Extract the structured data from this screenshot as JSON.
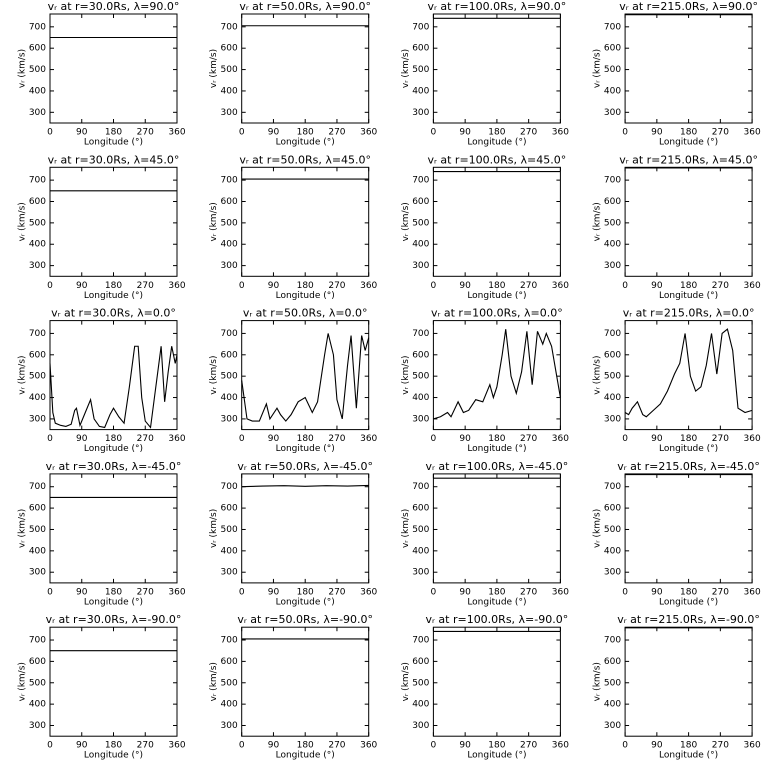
{
  "chart_data": [
    {
      "type": "line",
      "title": "vᵣ at r=30.0Rs, λ=90.0°",
      "xlabel": "Longitude (°)",
      "ylabel": "vᵣ (km/s)",
      "x": [
        0,
        360
      ],
      "series": [
        {
          "color": "#000000",
          "values": [
            650,
            650
          ]
        }
      ],
      "xlim": [
        0,
        360
      ],
      "ylim": [
        250,
        760
      ],
      "xticks": [
        0,
        90,
        180,
        270,
        360
      ],
      "yticks": [
        300,
        400,
        500,
        600,
        700
      ]
    },
    {
      "type": "line",
      "title": "vᵣ at r=50.0Rs, λ=90.0°",
      "xlabel": "Longitude (°)",
      "ylabel": "vᵣ (km/s)",
      "x": [
        0,
        360
      ],
      "series": [
        {
          "color": "#000000",
          "values": [
            705,
            705
          ]
        }
      ],
      "xlim": [
        0,
        360
      ],
      "ylim": [
        250,
        760
      ],
      "xticks": [
        0,
        90,
        180,
        270,
        360
      ],
      "yticks": [
        300,
        400,
        500,
        600,
        700
      ]
    },
    {
      "type": "line",
      "title": "vᵣ at r=100.0Rs, λ=90.0°",
      "xlabel": "Longitude (°)",
      "ylabel": "vᵣ (km/s)",
      "x": [
        0,
        360
      ],
      "series": [
        {
          "color": "#000000",
          "values": [
            740,
            740
          ]
        }
      ],
      "xlim": [
        0,
        360
      ],
      "ylim": [
        250,
        760
      ],
      "xticks": [
        0,
        90,
        180,
        270,
        360
      ],
      "yticks": [
        300,
        400,
        500,
        600,
        700
      ]
    },
    {
      "type": "line",
      "title": "vᵣ at r=215.0Rs, λ=90.0°",
      "xlabel": "Longitude (°)",
      "ylabel": "vᵣ (km/s)",
      "x": [
        0,
        360
      ],
      "series": [
        {
          "color": "#000000",
          "values": [
            757,
            757
          ]
        }
      ],
      "xlim": [
        0,
        360
      ],
      "ylim": [
        250,
        760
      ],
      "xticks": [
        0,
        90,
        180,
        270,
        360
      ],
      "yticks": [
        300,
        400,
        500,
        600,
        700
      ]
    },
    {
      "type": "line",
      "title": "vᵣ at r=30.0Rs, λ=45.0°",
      "xlabel": "Longitude (°)",
      "ylabel": "vᵣ (km/s)",
      "x": [
        0,
        360
      ],
      "series": [
        {
          "color": "#000000",
          "values": [
            650,
            650
          ]
        }
      ],
      "xlim": [
        0,
        360
      ],
      "ylim": [
        250,
        760
      ],
      "xticks": [
        0,
        90,
        180,
        270,
        360
      ],
      "yticks": [
        300,
        400,
        500,
        600,
        700
      ]
    },
    {
      "type": "line",
      "title": "vᵣ at r=50.0Rs, λ=45.0°",
      "xlabel": "Longitude (°)",
      "ylabel": "vᵣ (km/s)",
      "x": [
        0,
        360
      ],
      "series": [
        {
          "color": "#000000",
          "values": [
            705,
            705
          ]
        }
      ],
      "xlim": [
        0,
        360
      ],
      "ylim": [
        250,
        760
      ],
      "xticks": [
        0,
        90,
        180,
        270,
        360
      ],
      "yticks": [
        300,
        400,
        500,
        600,
        700
      ]
    },
    {
      "type": "line",
      "title": "vᵣ at r=100.0Rs, λ=45.0°",
      "xlabel": "Longitude (°)",
      "ylabel": "vᵣ (km/s)",
      "x": [
        0,
        360
      ],
      "series": [
        {
          "color": "#000000",
          "values": [
            740,
            740
          ]
        }
      ],
      "xlim": [
        0,
        360
      ],
      "ylim": [
        250,
        760
      ],
      "xticks": [
        0,
        90,
        180,
        270,
        360
      ],
      "yticks": [
        300,
        400,
        500,
        600,
        700
      ]
    },
    {
      "type": "line",
      "title": "vᵣ at r=215.0Rs, λ=45.0°",
      "xlabel": "Longitude (°)",
      "ylabel": "vᵣ (km/s)",
      "x": [
        0,
        360
      ],
      "series": [
        {
          "color": "#000000",
          "values": [
            757,
            757
          ]
        }
      ],
      "xlim": [
        0,
        360
      ],
      "ylim": [
        250,
        760
      ],
      "xticks": [
        0,
        90,
        180,
        270,
        360
      ],
      "yticks": [
        300,
        400,
        500,
        600,
        700
      ]
    },
    {
      "type": "line",
      "title": "vᵣ at r=30.0Rs, λ=0.0°",
      "xlabel": "Longitude (°)",
      "ylabel": "vᵣ (km/s)",
      "x": [
        0,
        8,
        15,
        30,
        45,
        60,
        70,
        75,
        85,
        100,
        115,
        125,
        140,
        155,
        170,
        180,
        195,
        210,
        225,
        240,
        250,
        260,
        270,
        285,
        300,
        315,
        325,
        335,
        345,
        355,
        360
      ],
      "series": [
        {
          "color": "#000000",
          "values": [
            560,
            330,
            280,
            270,
            265,
            275,
            340,
            350,
            270,
            330,
            390,
            300,
            265,
            260,
            320,
            350,
            310,
            280,
            450,
            640,
            640,
            400,
            290,
            260,
            450,
            640,
            380,
            520,
            640,
            560,
            600
          ]
        }
      ],
      "xlim": [
        0,
        360
      ],
      "ylim": [
        250,
        760
      ],
      "xticks": [
        0,
        90,
        180,
        270,
        360
      ],
      "yticks": [
        300,
        400,
        500,
        600,
        700
      ]
    },
    {
      "type": "line",
      "title": "vᵣ at r=50.0Rs, λ=0.0°",
      "xlabel": "Longitude (°)",
      "ylabel": "vᵣ (km/s)",
      "x": [
        0,
        15,
        30,
        50,
        70,
        80,
        100,
        110,
        125,
        140,
        160,
        180,
        200,
        215,
        235,
        245,
        260,
        270,
        285,
        300,
        310,
        325,
        340,
        350,
        360
      ],
      "series": [
        {
          "color": "#000000",
          "values": [
            480,
            300,
            290,
            290,
            370,
            300,
            350,
            320,
            290,
            320,
            380,
            400,
            330,
            380,
            600,
            700,
            600,
            390,
            300,
            550,
            690,
            350,
            690,
            620,
            680
          ]
        }
      ],
      "xlim": [
        0,
        360
      ],
      "ylim": [
        250,
        760
      ],
      "xticks": [
        0,
        90,
        180,
        270,
        360
      ],
      "yticks": [
        300,
        400,
        500,
        600,
        700
      ]
    },
    {
      "type": "line",
      "title": "vᵣ at r=100.0Rs, λ=0.0°",
      "xlabel": "Longitude (°)",
      "ylabel": "vᵣ (km/s)",
      "x": [
        0,
        20,
        40,
        50,
        70,
        85,
        100,
        120,
        140,
        160,
        170,
        180,
        195,
        205,
        220,
        235,
        250,
        265,
        280,
        295,
        310,
        320,
        335,
        360
      ],
      "series": [
        {
          "color": "#000000",
          "values": [
            300,
            310,
            330,
            310,
            380,
            330,
            340,
            390,
            380,
            460,
            400,
            450,
            600,
            720,
            500,
            420,
            520,
            710,
            460,
            710,
            650,
            700,
            640,
            400
          ]
        }
      ],
      "xlim": [
        0,
        360
      ],
      "ylim": [
        250,
        760
      ],
      "xticks": [
        0,
        90,
        180,
        270,
        360
      ],
      "yticks": [
        300,
        400,
        500,
        600,
        700
      ]
    },
    {
      "type": "line",
      "title": "vᵣ at r=215.0Rs, λ=0.0°",
      "xlabel": "Longitude (°)",
      "ylabel": "vᵣ (km/s)",
      "x": [
        0,
        10,
        20,
        35,
        50,
        60,
        80,
        100,
        120,
        140,
        155,
        170,
        185,
        200,
        215,
        230,
        245,
        260,
        275,
        290,
        305,
        320,
        340,
        360
      ],
      "series": [
        {
          "color": "#000000",
          "values": [
            330,
            320,
            350,
            380,
            320,
            310,
            340,
            370,
            430,
            510,
            560,
            700,
            500,
            430,
            450,
            550,
            700,
            510,
            700,
            720,
            620,
            350,
            330,
            340
          ]
        }
      ],
      "xlim": [
        0,
        360
      ],
      "ylim": [
        250,
        760
      ],
      "xticks": [
        0,
        90,
        180,
        270,
        360
      ],
      "yticks": [
        300,
        400,
        500,
        600,
        700
      ]
    },
    {
      "type": "line",
      "title": "vᵣ at r=30.0Rs, λ=-45.0°",
      "xlabel": "Longitude (°)",
      "ylabel": "vᵣ (km/s)",
      "x": [
        0,
        360
      ],
      "series": [
        {
          "color": "#000000",
          "values": [
            650,
            650
          ]
        }
      ],
      "xlim": [
        0,
        360
      ],
      "ylim": [
        250,
        760
      ],
      "xticks": [
        0,
        90,
        180,
        270,
        360
      ],
      "yticks": [
        300,
        400,
        500,
        600,
        700
      ]
    },
    {
      "type": "line",
      "title": "vᵣ at r=50.0Rs, λ=-45.0°",
      "xlabel": "Longitude (°)",
      "ylabel": "vᵣ (km/s)",
      "x": [
        0,
        60,
        120,
        180,
        240,
        300,
        360
      ],
      "series": [
        {
          "color": "#000000",
          "values": [
            700,
            703,
            705,
            702,
            705,
            703,
            706
          ]
        }
      ],
      "xlim": [
        0,
        360
      ],
      "ylim": [
        250,
        760
      ],
      "xticks": [
        0,
        90,
        180,
        270,
        360
      ],
      "yticks": [
        300,
        400,
        500,
        600,
        700
      ]
    },
    {
      "type": "line",
      "title": "vᵣ at r=100.0Rs, λ=-45.0°",
      "xlabel": "Longitude (°)",
      "ylabel": "vᵣ (km/s)",
      "x": [
        0,
        360
      ],
      "series": [
        {
          "color": "#000000",
          "values": [
            740,
            740
          ]
        }
      ],
      "xlim": [
        0,
        360
      ],
      "ylim": [
        250,
        760
      ],
      "xticks": [
        0,
        90,
        180,
        270,
        360
      ],
      "yticks": [
        300,
        400,
        500,
        600,
        700
      ]
    },
    {
      "type": "line",
      "title": "vᵣ at r=215.0Rs, λ=-45.0°",
      "xlabel": "Longitude (°)",
      "ylabel": "vᵣ (km/s)",
      "x": [
        0,
        360
      ],
      "series": [
        {
          "color": "#000000",
          "values": [
            757,
            757
          ]
        }
      ],
      "xlim": [
        0,
        360
      ],
      "ylim": [
        250,
        760
      ],
      "xticks": [
        0,
        90,
        180,
        270,
        360
      ],
      "yticks": [
        300,
        400,
        500,
        600,
        700
      ]
    },
    {
      "type": "line",
      "title": "vᵣ at r=30.0Rs, λ=-90.0°",
      "xlabel": "Longitude (°)",
      "ylabel": "vᵣ (km/s)",
      "x": [
        0,
        360
      ],
      "series": [
        {
          "color": "#000000",
          "values": [
            650,
            650
          ]
        }
      ],
      "xlim": [
        0,
        360
      ],
      "ylim": [
        250,
        760
      ],
      "xticks": [
        0,
        90,
        180,
        270,
        360
      ],
      "yticks": [
        300,
        400,
        500,
        600,
        700
      ]
    },
    {
      "type": "line",
      "title": "vᵣ at r=50.0Rs, λ=-90.0°",
      "xlabel": "Longitude (°)",
      "ylabel": "vᵣ (km/s)",
      "x": [
        0,
        360
      ],
      "series": [
        {
          "color": "#000000",
          "values": [
            705,
            705
          ]
        }
      ],
      "xlim": [
        0,
        360
      ],
      "ylim": [
        250,
        760
      ],
      "xticks": [
        0,
        90,
        180,
        270,
        360
      ],
      "yticks": [
        300,
        400,
        500,
        600,
        700
      ]
    },
    {
      "type": "line",
      "title": "vᵣ at r=100.0Rs, λ=-90.0°",
      "xlabel": "Longitude (°)",
      "ylabel": "vᵣ (km/s)",
      "x": [
        0,
        360
      ],
      "series": [
        {
          "color": "#000000",
          "values": [
            740,
            740
          ]
        }
      ],
      "xlim": [
        0,
        360
      ],
      "ylim": [
        250,
        760
      ],
      "xticks": [
        0,
        90,
        180,
        270,
        360
      ],
      "yticks": [
        300,
        400,
        500,
        600,
        700
      ]
    },
    {
      "type": "line",
      "title": "vᵣ at r=215.0Rs, λ=-90.0°",
      "xlabel": "Longitude (°)",
      "ylabel": "vᵣ (km/s)",
      "x": [
        0,
        360
      ],
      "series": [
        {
          "color": "#000000",
          "values": [
            757,
            757
          ]
        }
      ],
      "xlim": [
        0,
        360
      ],
      "ylim": [
        250,
        760
      ],
      "xticks": [
        0,
        90,
        180,
        270,
        360
      ],
      "yticks": [
        300,
        400,
        500,
        600,
        700
      ]
    }
  ]
}
